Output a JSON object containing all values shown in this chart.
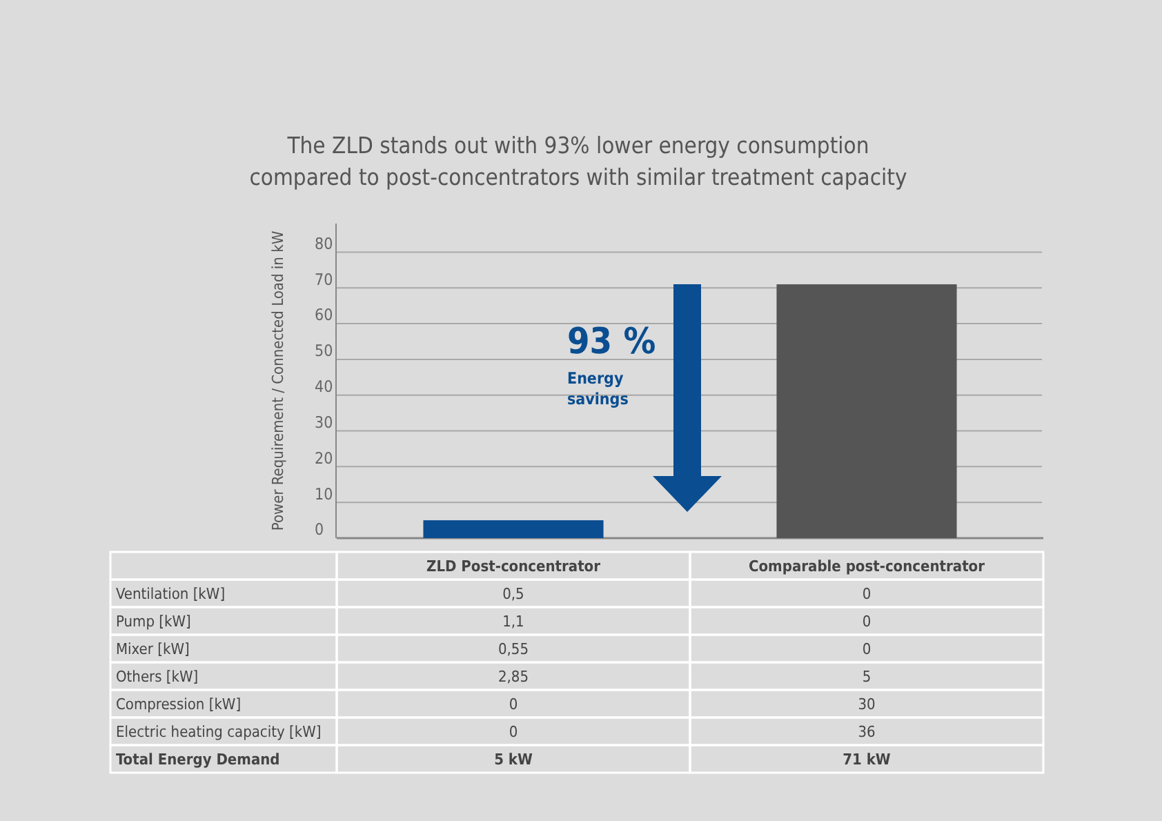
{
  "chart_data": [
    {
      "type": "bar",
      "title": "The ZLD stands out with 93% lower energy consumption\ncompared to post-concentrators with similar treatment capacity",
      "ylabel": "Power Requirement / Connected Load in kW",
      "categories": [
        "ZLD Post-concentrator",
        "Comparable post-concentrator"
      ],
      "values": [
        5,
        71
      ],
      "colors": [
        "#0a4d91",
        "#555555"
      ],
      "ylim": [
        0,
        88
      ],
      "yticks": [
        0,
        10,
        20,
        30,
        40,
        50,
        60,
        70,
        80
      ],
      "grid": "y",
      "annotations": [
        "93 %",
        "Energy savings"
      ]
    },
    {
      "type": "other",
      "y_categories": [
        "Ventilation [kW]",
        "Pump [kW]",
        "Mixer [kW]",
        "Others [kW]",
        "Compression [kW]",
        "Electric heating capacity [kW]",
        "Total Energy Demand"
      ],
      "cell_labels": [
        [
          "0,5",
          "0"
        ],
        [
          "1,1",
          "0"
        ],
        [
          "0,55",
          "0"
        ],
        [
          "2,85",
          "5"
        ],
        [
          "0",
          "30"
        ],
        [
          "0",
          "36"
        ],
        [
          "5 kW",
          "71 kW"
        ]
      ]
    }
  ]
}
